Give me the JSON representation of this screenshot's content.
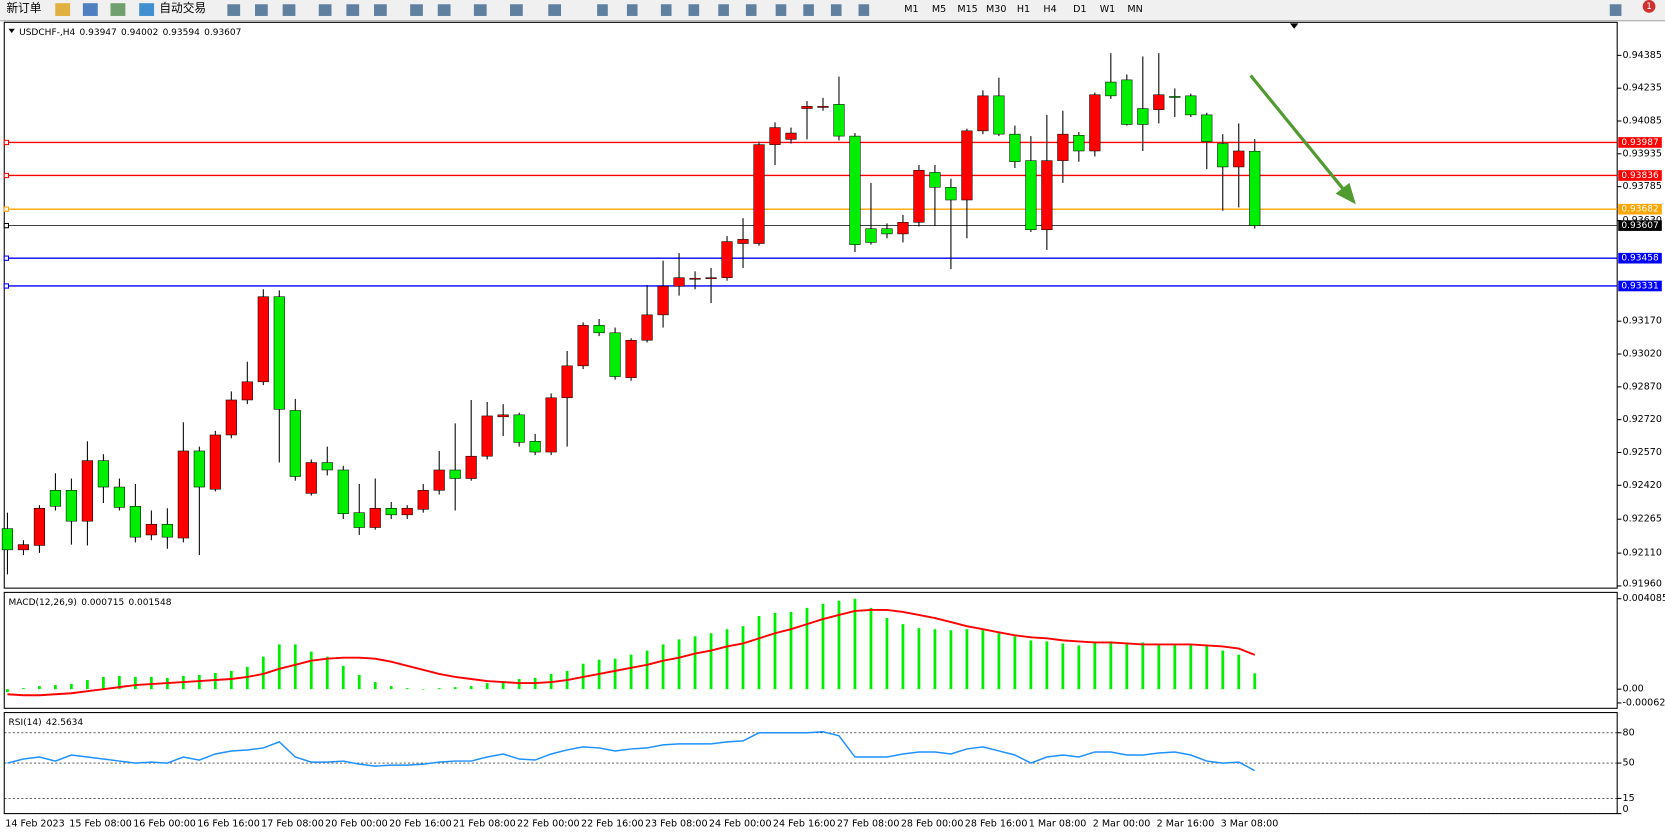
{
  "toolbar": {
    "buttons": [
      "新订单",
      "自动交易"
    ],
    "timeframes": [
      "M1",
      "M5",
      "M15",
      "M30",
      "H1",
      "H4",
      "D1",
      "W1",
      "MN"
    ],
    "badge": 1
  },
  "chart_data": [
    {
      "type": "candlestick",
      "title": "USDCHF-,H4",
      "categories": [
        "14 Feb 2023",
        null,
        null,
        null,
        "15 Feb 08:00",
        null,
        null,
        null,
        "16 Feb 00:00",
        null,
        null,
        null,
        "16 Feb 16:00",
        null,
        null,
        null,
        "17 Feb 08:00",
        null,
        null,
        null,
        "20 Feb 00:00",
        null,
        null,
        null,
        "20 Feb 16:00",
        null,
        null,
        null,
        "21 Feb 08:00",
        null,
        null,
        null,
        "22 Feb 00:00",
        null,
        null,
        null,
        "22 Feb 16:00",
        null,
        null,
        null,
        "23 Feb 08:00",
        null,
        null,
        null,
        "24 Feb 00:00",
        null,
        null,
        null,
        "24 Feb 16:00",
        null,
        null,
        null,
        "27 Feb 08:00",
        null,
        null,
        null,
        "28 Feb 00:00",
        null,
        null,
        null,
        "28 Feb 16:00",
        null,
        null,
        null,
        "1 Mar 08:00",
        null,
        null,
        null,
        "2 Mar 00:00",
        null,
        null,
        null,
        "2 Mar 16:00",
        null,
        null,
        null,
        "3 Mar 08:00",
        null,
        null
      ],
      "open": [
        0.92222,
        0.92125,
        0.92145,
        0.92397,
        0.92397,
        0.92256,
        0.92533,
        0.92412,
        0.92324,
        0.92193,
        0.92242,
        0.92179,
        0.92577,
        0.92402,
        0.9265,
        0.9281,
        0.92893,
        0.93282,
        0.92762,
        0.92383,
        0.92524,
        0.9249,
        0.92295,
        0.92227,
        0.92315,
        0.92285,
        0.9231,
        0.92397,
        0.9249,
        0.92451,
        0.92553,
        0.92733,
        0.92742,
        0.92621,
        0.92572,
        0.9282,
        0.92966,
        0.93151,
        0.93117,
        0.92912,
        0.93083,
        0.93199,
        0.9333,
        0.9336,
        0.93364,
        0.93369,
        0.93525,
        0.93525,
        0.93977,
        0.94001,
        0.94142,
        0.94147,
        0.94161,
        0.94016,
        0.93593,
        0.93593,
        0.93569,
        0.93622,
        0.9385,
        0.93782,
        0.93724,
        0.9404,
        0.942,
        0.94025,
        0.93904,
        0.93588,
        0.93904,
        0.9402,
        0.93948,
        0.94263,
        0.94273,
        0.94142,
        0.94137,
        0.94195,
        0.942,
        0.94113,
        0.93982,
        0.93875,
        0.93947
      ],
      "high": [
        0.92295,
        0.92169,
        0.92329,
        0.92475,
        0.92451,
        0.92621,
        0.92562,
        0.92451,
        0.92426,
        0.92305,
        0.92315,
        0.92708,
        0.92597,
        0.92669,
        0.92849,
        0.92985,
        0.93316,
        0.93311,
        0.92815,
        0.92538,
        0.92597,
        0.92509,
        0.92426,
        0.92451,
        0.92344,
        0.92329,
        0.92426,
        0.92577,
        0.92703,
        0.9281,
        0.92801,
        0.92791,
        0.92752,
        0.92655,
        0.9284,
        0.93034,
        0.93165,
        0.9318,
        0.93141,
        0.93092,
        0.93335,
        0.93447,
        0.93481,
        0.93398,
        0.93413,
        0.93559,
        0.93641,
        0.93991,
        0.94079,
        0.94055,
        0.94176,
        0.94191,
        0.94288,
        0.9403,
        0.93802,
        0.93617,
        0.93656,
        0.93884,
        0.93884,
        0.93821,
        0.9405,
        0.94225,
        0.94283,
        0.94064,
        0.94016,
        0.94113,
        0.94132,
        0.94035,
        0.94215,
        0.94395,
        0.94298,
        0.9438,
        0.94395,
        0.94234,
        0.9421,
        0.94123,
        0.94025,
        0.94074,
        0.94002
      ],
      "low": [
        0.92013,
        0.92101,
        0.92111,
        0.92305,
        0.92149,
        0.92145,
        0.92339,
        0.92305,
        0.92159,
        0.92169,
        0.9213,
        0.92159,
        0.92101,
        0.92392,
        0.92635,
        0.92791,
        0.92878,
        0.92524,
        0.92441,
        0.92373,
        0.92465,
        0.92266,
        0.92193,
        0.92217,
        0.92266,
        0.92266,
        0.92295,
        0.92378,
        0.92305,
        0.92441,
        0.92538,
        0.92645,
        0.92597,
        0.92558,
        0.92558,
        0.92597,
        0.92951,
        0.93102,
        0.92903,
        0.92898,
        0.93073,
        0.93141,
        0.93287,
        0.93316,
        0.93253,
        0.93355,
        0.93413,
        0.93515,
        0.93884,
        0.93982,
        0.94001,
        0.94132,
        0.93996,
        0.93486,
        0.9352,
        0.93549,
        0.9353,
        0.93603,
        0.93607,
        0.93408,
        0.93549,
        0.94025,
        0.94016,
        0.9387,
        0.93578,
        0.93496,
        0.93802,
        0.93899,
        0.93923,
        0.94186,
        0.94064,
        0.93948,
        0.94074,
        0.94103,
        0.94103,
        0.93865,
        0.93675,
        0.9369,
        0.93594
      ],
      "close": [
        0.92125,
        0.92149,
        0.92315,
        0.92324,
        0.92256,
        0.92533,
        0.92412,
        0.92319,
        0.92183,
        0.92242,
        0.92183,
        0.92577,
        0.92412,
        0.9265,
        0.9281,
        0.92893,
        0.93282,
        0.92767,
        0.9246,
        0.92524,
        0.9249,
        0.9229,
        0.92227,
        0.92315,
        0.92285,
        0.92315,
        0.92397,
        0.9249,
        0.92451,
        0.92553,
        0.92737,
        0.92742,
        0.92616,
        0.92572,
        0.9282,
        0.92966,
        0.93151,
        0.93117,
        0.92917,
        0.93083,
        0.93199,
        0.9333,
        0.93369,
        0.93364,
        0.93369,
        0.93534,
        0.93544,
        0.93977,
        0.94055,
        0.9403,
        0.94152,
        0.94152,
        0.94016,
        0.9352,
        0.9353,
        0.93569,
        0.93622,
        0.9386,
        0.93782,
        0.93724,
        0.9404,
        0.942,
        0.94025,
        0.93899,
        0.93588,
        0.93904,
        0.94025,
        0.93948,
        0.94205,
        0.942,
        0.94069,
        0.94069,
        0.94205,
        0.94191,
        0.94113,
        0.93991,
        0.93875,
        0.93948,
        0.93607
      ],
      "up_color": "#ff0000",
      "down_color": "#00ee00",
      "ylim": [
        0.9195,
        0.94536
      ],
      "yticks": [
        0.94385,
        0.94235,
        0.94085,
        0.93935,
        0.93785,
        {
          "value": 0.9363,
          "label": "0.93630"
        },
        {
          "value": 0.9317,
          "label": "0.93170"
        },
        {
          "value": 0.9302,
          "label": "0.93020"
        },
        {
          "value": 0.9287,
          "label": "0.92870"
        },
        {
          "value": 0.9272,
          "label": "0.92720"
        },
        {
          "value": 0.9257,
          "label": "0.92570"
        },
        {
          "value": 0.9242,
          "label": "0.92420"
        },
        0.92265,
        {
          "value": 0.9211,
          "label": "0.92110"
        },
        {
          "value": 0.9196,
          "label": "0.91960"
        }
      ],
      "grid": false,
      "lines": [
        {
          "value": 0.93987,
          "color": "#ff0000"
        },
        {
          "value": 0.93836,
          "color": "#ff0000"
        },
        {
          "value": 0.93682,
          "color": "#ffa500"
        },
        {
          "value": 0.93607,
          "color": "#000000"
        },
        {
          "value": 0.93458,
          "color": "#0000ff"
        },
        {
          "value": 0.93331,
          "color": "#0000ff"
        }
      ]
    },
    {
      "type": "bar",
      "title": "MACD(12,26,9)",
      "series": [
        {
          "style": "bar",
          "color": "#00ee00",
          "values": [
            -0.000138,
            4.6e-05,
            0.000138,
            0.000184,
            0.00023,
            0.000413,
            0.000551,
            0.000597,
            0.000551,
            0.000551,
            0.000505,
            0.000597,
            0.000643,
            0.000734,
            0.000826,
            0.00101,
            0.001469,
            0.00202,
            0.00202,
            0.001698,
            0.001469,
            0.001056,
            0.000643,
            0.000321,
            0.000138,
            4.6e-05,
            0,
            4.6e-05,
            9.2e-05,
            0.000138,
            0.000275,
            0.000367,
            0.000459,
            0.000505,
            0.000689,
            0.000826,
            0.001148,
            0.001331,
            0.001377,
            0.001561,
            0.001744,
            0.00202,
            0.002249,
            0.002387,
            0.002525,
            0.002708,
            0.002846,
            0.003305,
            0.003443,
            0.003488,
            0.003672,
            0.003856,
            0.003993,
            0.004085,
            0.003672,
            0.003213,
            0.002938,
            0.002754,
            0.002708,
            0.002662,
            0.002708,
            0.002662,
            0.002525,
            0.002387,
            0.002203,
            0.002157,
            0.002066,
            0.001974,
            0.002111,
            0.002157,
            0.002111,
            0.002111,
            0.00202,
            0.00202,
            0.00202,
            0.001974,
            0.001744,
            0.001561,
            0.000715
          ]
        },
        {
          "style": "line",
          "color": "#ff0000",
          "values": [
            -0.00023,
            -0.000275,
            -0.000275,
            -0.00023,
            -0.000184,
            -9.2e-05,
            0,
            9.2e-05,
            0.000184,
            0.00023,
            0.000275,
            0.000321,
            0.000367,
            0.000413,
            0.000459,
            0.000551,
            0.000689,
            0.000918,
            0.001102,
            0.001285,
            0.001377,
            0.001423,
            0.001423,
            0.001377,
            0.001239,
            0.001056,
            0.000872,
            0.000689,
            0.000551,
            0.000459,
            0.000367,
            0.000321,
            0.000275,
            0.000275,
            0.000321,
            0.000413,
            0.000551,
            0.000689,
            0.000826,
            0.000964,
            0.001102,
            0.001285,
            0.001423,
            0.001607,
            0.001744,
            0.001928,
            0.002066,
            0.002295,
            0.002525,
            0.002708,
            0.002938,
            0.003167,
            0.003351,
            0.003534,
            0.00358,
            0.00358,
            0.003488,
            0.003351,
            0.003213,
            0.003029,
            0.002846,
            0.002708,
            0.00257,
            0.002433,
            0.002341,
            0.002295,
            0.002203,
            0.002157,
            0.002111,
            0.002111,
            0.002066,
            0.00202,
            0.00202,
            0.00202,
            0.00202,
            0.001974,
            0.001928,
            0.001836,
            0.001548
          ]
        }
      ],
      "ylim": [
        -0.000865,
        0.004371
      ],
      "yticks": [
        0.004085,
        {
          "value": 0,
          "label": "0.00"
        },
        -0.000622
      ],
      "grid": false
    },
    {
      "type": "line",
      "title": "RSI(14)",
      "color": "#1e90ff",
      "values": [
        50,
        54,
        56,
        52,
        58,
        56,
        54,
        52,
        50,
        51,
        50,
        56,
        53,
        59,
        62,
        63,
        65,
        71,
        56,
        51,
        51,
        52,
        49,
        47,
        48,
        48,
        49,
        51,
        52,
        52,
        56,
        59,
        54,
        53,
        59,
        63,
        66,
        65,
        62,
        64,
        65,
        68,
        69,
        69,
        69,
        71,
        72,
        80,
        80,
        80,
        80,
        81,
        77,
        56,
        56,
        56,
        59,
        61,
        61,
        59,
        64,
        66,
        62,
        58,
        50,
        56,
        58,
        56,
        61,
        61,
        58,
        58,
        60,
        61,
        58,
        52,
        50,
        51,
        42.5634
      ],
      "ylim": [
        0,
        100
      ],
      "yticks": [
        0,
        15,
        50,
        80
      ],
      "grid": true
    }
  ]
}
